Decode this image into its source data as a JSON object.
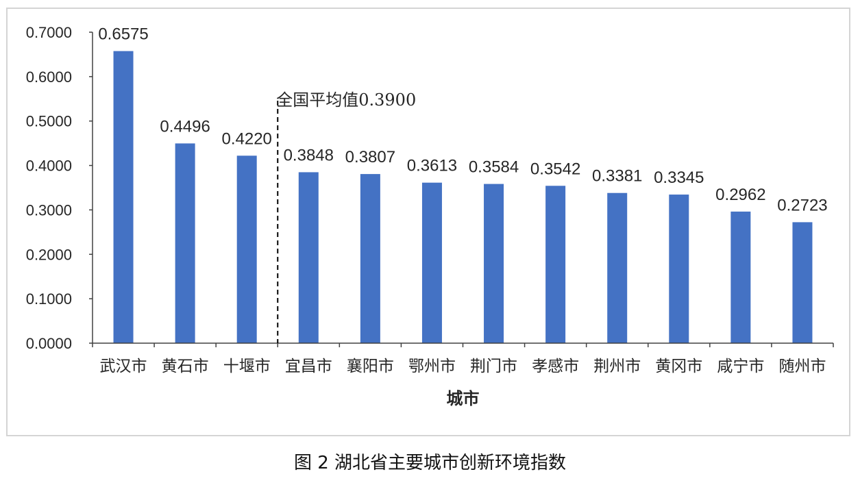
{
  "caption": "图 2 湖北省主要城市创新环境指数",
  "chart_data": {
    "type": "bar",
    "title": "",
    "xlabel": "城市",
    "ylabel": "",
    "ylim": [
      0,
      0.7
    ],
    "yticks": [
      "0.0000",
      "0.1000",
      "0.2000",
      "0.3000",
      "0.4000",
      "0.5000",
      "0.6000",
      "0.7000"
    ],
    "categories": [
      "武汉市",
      "黄石市",
      "十堰市",
      "宜昌市",
      "襄阳市",
      "鄂州市",
      "荆门市",
      "孝感市",
      "荆州市",
      "黄冈市",
      "咸宁市",
      "随州市"
    ],
    "values": [
      0.6575,
      0.4496,
      0.422,
      0.3848,
      0.3807,
      0.3613,
      0.3584,
      0.3542,
      0.3381,
      0.3345,
      0.2962,
      0.2723
    ],
    "data_labels": [
      "0.6575",
      "0.4496",
      "0.4220",
      "0.3848",
      "0.3807",
      "0.3613",
      "0.3584",
      "0.3542",
      "0.3381",
      "0.3345",
      "0.2962",
      "0.2723"
    ],
    "bar_color": "#4472C4",
    "reference_line": {
      "label": "全国平均值0.3900",
      "value": 0.39,
      "between": [
        "十堰市",
        "宜昌市"
      ],
      "style": "dashed"
    },
    "grid": false,
    "legend": "none"
  }
}
